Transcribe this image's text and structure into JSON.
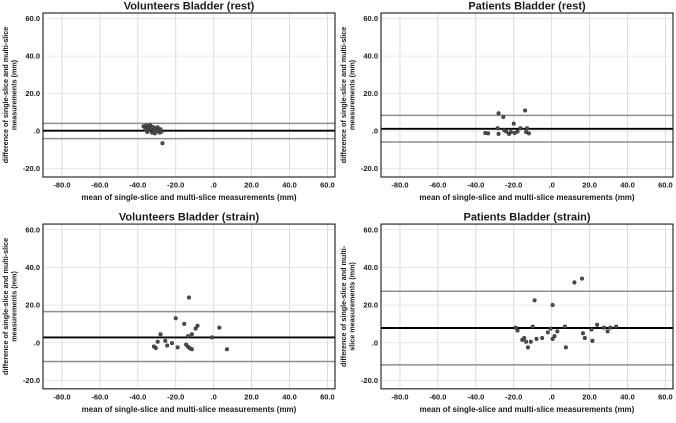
{
  "figure": {
    "background": "#ffffff",
    "grid_color_vertical": "#d8d8d8",
    "grid_color_horizontal": "#e6e6e6",
    "border_color": "#1a1a1a",
    "text_color": "#1a1a1a",
    "mean_line_color": "#000000",
    "loa_line_color": "#8f8f8f",
    "point_fill": "#4f4f4f",
    "point_stroke": "#2e2e2e",
    "x_domain": [
      -90,
      64
    ],
    "y_domain": [
      -24.5,
      63
    ],
    "x_ticks": [
      -80,
      -60,
      -40,
      -20,
      0,
      20,
      40,
      60
    ],
    "x_tick_labels": [
      "-80.0",
      "-60.0",
      "-40.0",
      "-20.0",
      ".0",
      "20.0",
      "40.0",
      "60.0"
    ],
    "y_ticks": [
      60,
      40,
      20,
      0,
      -20
    ],
    "y_tick_labels": [
      "60.0",
      "40.0",
      "20.0",
      ".0",
      "-20.0"
    ],
    "grid_on": true,
    "legend": "none"
  },
  "chart_data": [
    {
      "type": "scatter",
      "title": "Volunteers Bladder (rest)",
      "xlabel": "mean of single-slice and multi-slice measurements (mm)",
      "ylabel_line1": "difference of single-slice and multi-slice",
      "ylabel_line2": "measurements (mm)",
      "mean_line": 0.2,
      "upper_loa": 4.1,
      "lower_loa": -4.0,
      "xlim": [
        -90,
        64
      ],
      "ylim": [
        -24.5,
        63
      ],
      "points": [
        [
          -37,
          2.5
        ],
        [
          -36,
          1
        ],
        [
          -35.5,
          3
        ],
        [
          -35,
          -0.5
        ],
        [
          -34.5,
          2
        ],
        [
          -34,
          0.5
        ],
        [
          -33.5,
          3.2
        ],
        [
          -33,
          1.5
        ],
        [
          -32.5,
          -0.8
        ],
        [
          -32,
          2.2
        ],
        [
          -31.5,
          0.3
        ],
        [
          -31,
          -1.2
        ],
        [
          -30.5,
          1.5
        ],
        [
          -30,
          0
        ],
        [
          -29.5,
          2
        ],
        [
          -29,
          0.5
        ],
        [
          -28.5,
          -0.8
        ],
        [
          -28,
          1
        ],
        [
          -27.5,
          -0.3
        ],
        [
          -27,
          -6.5
        ]
      ]
    },
    {
      "type": "scatter",
      "title": "Patients Bladder (rest)",
      "xlabel": "mean of single-slice and multi-slice measurements (mm)",
      "ylabel_line1": "difference of single-slice and multi-slice",
      "ylabel_line2": "measurements (mm)",
      "mean_line": 1.2,
      "upper_loa": 8.4,
      "lower_loa": -5.8,
      "xlim": [
        -90,
        64
      ],
      "ylim": [
        -24.5,
        63
      ],
      "points": [
        [
          -35,
          -1
        ],
        [
          -33.5,
          -1.2
        ],
        [
          -28.5,
          1.5
        ],
        [
          -28,
          9.5
        ],
        [
          -28,
          -1.5
        ],
        [
          -25.5,
          7.5
        ],
        [
          -25,
          0.5
        ],
        [
          -24,
          -0.2
        ],
        [
          -22.5,
          -1.5
        ],
        [
          -21.5,
          -0.5
        ],
        [
          -20,
          4
        ],
        [
          -19.5,
          -1
        ],
        [
          -18,
          -0.2
        ],
        [
          -16.5,
          1.5
        ],
        [
          -14,
          11
        ],
        [
          -13.5,
          -0.5
        ],
        [
          -13,
          1.5
        ],
        [
          -12,
          -1.2
        ]
      ]
    },
    {
      "type": "scatter",
      "title": "Volunteers Bladder (strain)",
      "xlabel": "mean of single-slice and multi-slice measurements (mm)",
      "ylabel_line1": "difference of single-slice and multi-slice",
      "ylabel_line2": "measurements (mm)",
      "mean_line": 2.8,
      "upper_loa": 16.5,
      "lower_loa": -10.0,
      "xlim": [
        -90,
        64
      ],
      "ylim": [
        -24.5,
        63
      ],
      "points": [
        [
          -13,
          24
        ],
        [
          -20,
          13
        ],
        [
          -15.5,
          10
        ],
        [
          -9.5,
          7.5
        ],
        [
          -8.5,
          9
        ],
        [
          3,
          8
        ],
        [
          -11.5,
          4.5
        ],
        [
          -13.5,
          3.5
        ],
        [
          -28,
          4.5
        ],
        [
          -25.5,
          1
        ],
        [
          -29.5,
          0.5
        ],
        [
          -22,
          -0.2
        ],
        [
          -24.5,
          -1.5
        ],
        [
          -31.5,
          -2
        ],
        [
          -30.5,
          -2.8
        ],
        [
          -19,
          -2.5
        ],
        [
          -14.5,
          -1
        ],
        [
          -13.5,
          -2.2
        ],
        [
          -12.5,
          -3
        ],
        [
          -11.5,
          -3.5
        ],
        [
          7,
          -3.5
        ],
        [
          -1,
          2.8
        ]
      ]
    },
    {
      "type": "scatter",
      "title": "Patients Bladder (strain)",
      "xlabel": "mean of single-slice and multi-slice measurements (mm)",
      "ylabel_line1": "difference of single-slice and multi-",
      "ylabel_line2": "slice measurements (mm)",
      "mean_line": 7.8,
      "upper_loa": 27.3,
      "lower_loa": -11.8,
      "xlim": [
        -90,
        64
      ],
      "ylim": [
        -24.5,
        63
      ],
      "points": [
        [
          -19,
          8
        ],
        [
          -18,
          6.5
        ],
        [
          -15.5,
          1.5
        ],
        [
          -14.5,
          2.5
        ],
        [
          -13.5,
          0.5
        ],
        [
          -12.5,
          -2.5
        ],
        [
          -11,
          0.5
        ],
        [
          -10,
          8.5
        ],
        [
          -9,
          22.5
        ],
        [
          -8,
          2
        ],
        [
          -5,
          2.5
        ],
        [
          -2,
          5.5
        ],
        [
          -0.5,
          7.5
        ],
        [
          0.5,
          20
        ],
        [
          0.5,
          2
        ],
        [
          1.5,
          3.5
        ],
        [
          3,
          6
        ],
        [
          7,
          8.5
        ],
        [
          7.5,
          -2.5
        ],
        [
          12,
          32
        ],
        [
          16,
          34
        ],
        [
          16.5,
          5
        ],
        [
          17.5,
          2.5
        ],
        [
          21,
          7
        ],
        [
          21.5,
          1
        ],
        [
          24,
          9.5
        ],
        [
          27.5,
          8
        ],
        [
          29.5,
          6
        ],
        [
          31,
          8
        ],
        [
          34,
          8.5
        ]
      ]
    }
  ]
}
